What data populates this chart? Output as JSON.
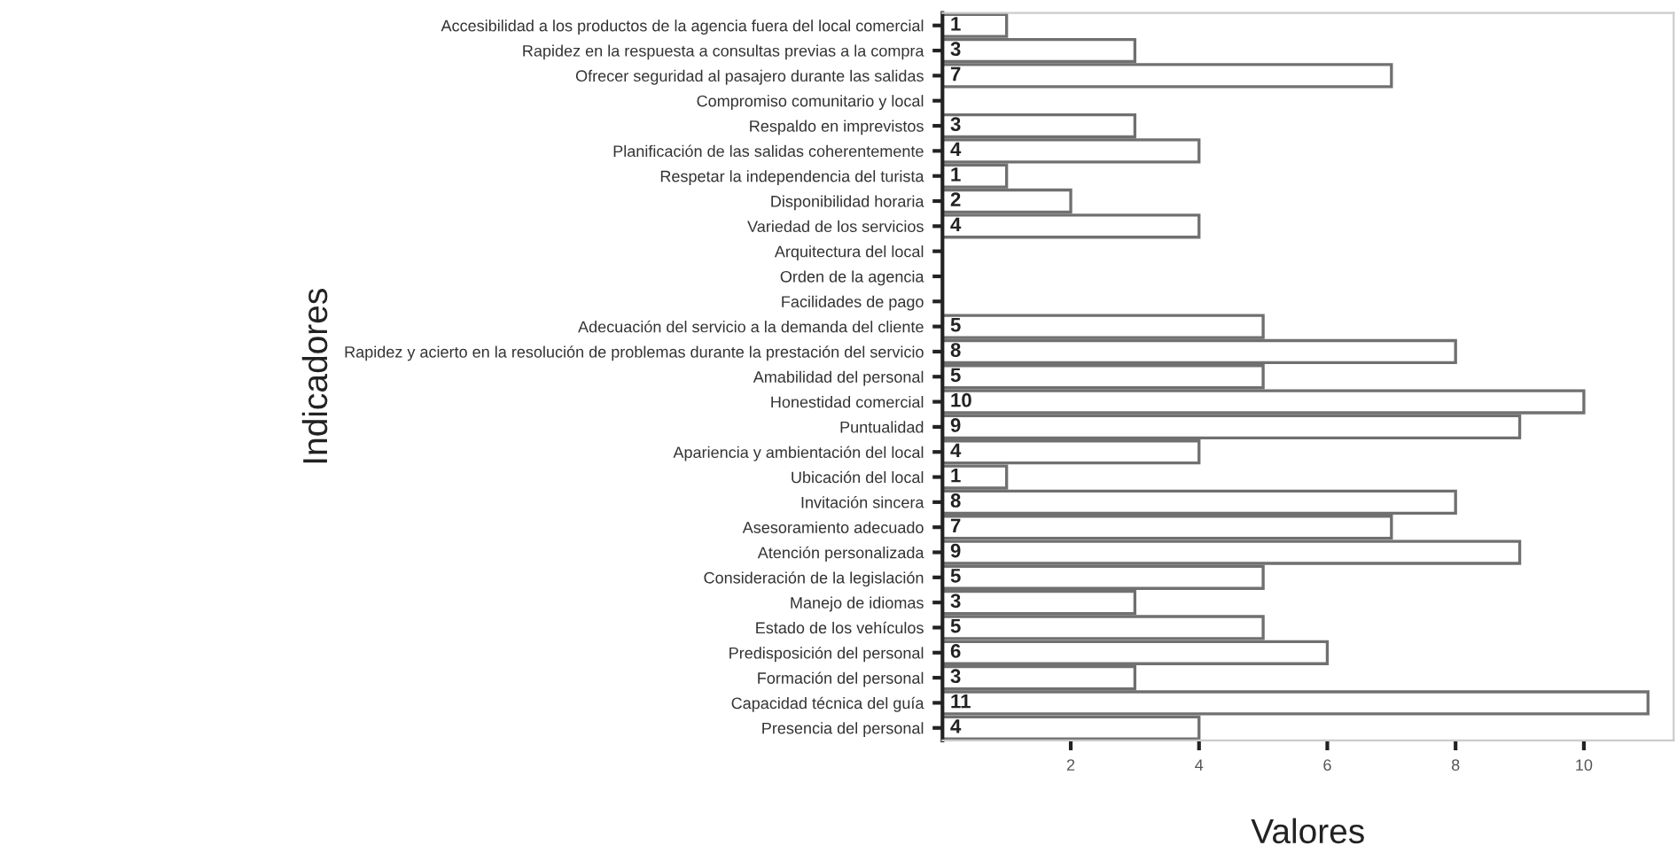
{
  "chart_data": {
    "type": "bar",
    "orientation": "horizontal",
    "xlabel": "Valores",
    "ylabel": "Indicadores",
    "categories": [
      "Accesibilidad a los productos de la agencia fuera del local comercial",
      "Rapidez en la respuesta a consultas previas a la compra",
      "Ofrecer seguridad al pasajero durante las salidas",
      "Compromiso comunitario y local",
      "Respaldo en imprevistos",
      "Planificación de las salidas coherentemente",
      "Respetar la independencia del turista",
      "Disponibilidad horaria",
      "Variedad de los servicios",
      "Arquitectura del local",
      "Orden de la agencia",
      "Facilidades de pago",
      "Adecuación del servicio a la demanda del cliente",
      "Rapidez y acierto en la resolución de problemas durante la prestación del servicio",
      "Amabilidad del personal",
      "Honestidad comercial",
      "Puntualidad",
      "Apariencia y ambientación del local",
      "Ubicación del local",
      "Invitación sincera",
      "Asesoramiento adecuado",
      "Atención personalizada",
      "Consideración de la legislación",
      "Manejo de idiomas",
      "Estado de los vehículos",
      "Predisposición del personal",
      "Formación del personal",
      "Capacidad técnica del guía",
      "Presencia del personal"
    ],
    "values": [
      1,
      3,
      7,
      null,
      3,
      4,
      1,
      2,
      4,
      null,
      null,
      null,
      5,
      8,
      5,
      10,
      9,
      4,
      1,
      8,
      7,
      9,
      5,
      3,
      5,
      6,
      3,
      11,
      4
    ],
    "color": "#ffffff",
    "xlim": [
      0,
      11.4
    ],
    "xticks": [
      2,
      4,
      6,
      8,
      10
    ],
    "data_labels": true,
    "grid": false,
    "legend": false
  }
}
